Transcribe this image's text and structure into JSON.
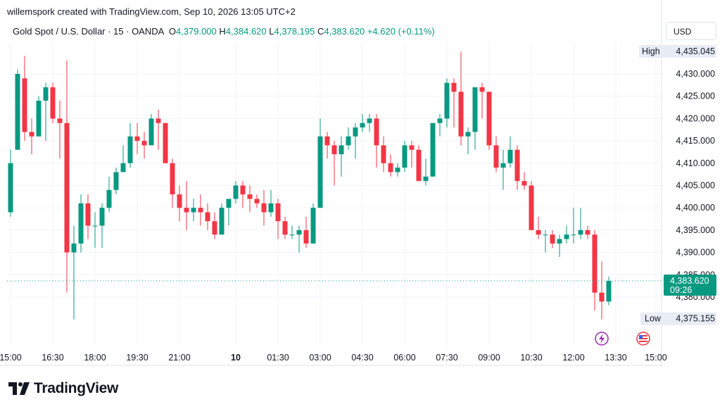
{
  "header": {
    "credit": "willemspork created with TradingView.com, Sep 10, 2026 13:05 UTC+2"
  },
  "legend": {
    "symbol": "Gold Spot / U.S. Dollar · 15 · OANDA",
    "o_label": "O",
    "o_value": "4,379.000",
    "h_label": "H",
    "h_value": "4,384.620",
    "l_label": "L",
    "l_value": "4,378.195",
    "c_label": "C",
    "c_value": "4,383.620",
    "change": "+4.620 (+0.11%)"
  },
  "currency": "USD",
  "footer": {
    "brand": "TradingView"
  },
  "colors": {
    "up": "#089981",
    "down": "#f23645",
    "grid": "#f0f3fa",
    "axis_text": "#131722",
    "badge_bg": "#e8ecf5"
  },
  "chart_data": {
    "type": "candlestick",
    "y_ticks": [
      "4,430.000",
      "4,425.000",
      "4,420.000",
      "4,415.000",
      "4,410.000",
      "4,405.000",
      "4,400.000",
      "4,395.000",
      "4,390.000",
      "4,385.000",
      "4,380.000"
    ],
    "y_tick_values": [
      4430,
      4425,
      4420,
      4415,
      4410,
      4405,
      4400,
      4395,
      4390,
      4385,
      4380
    ],
    "x_ticks": [
      "15:00",
      "16:30",
      "18:00",
      "19:30",
      "21:00",
      "10",
      "01:30",
      "03:00",
      "04:30",
      "06:00",
      "07:30",
      "09:00",
      "10:30",
      "12:00",
      "13:30",
      "15:00"
    ],
    "high_label": "High",
    "high_value": "4,435.045",
    "high_num": 4435.045,
    "low_label": "Low",
    "low_value": "4,375.155",
    "low_num": 4375.155,
    "last_price": "4,383.620",
    "last_price_num": 4383.62,
    "countdown": "09:26",
    "candles": [
      [
        4399,
        4410,
        4398,
        4413
      ],
      [
        4413,
        4430,
        4413,
        4431
      ],
      [
        4429,
        4417,
        4415,
        4434
      ],
      [
        4417,
        4416,
        4412,
        4420
      ],
      [
        4416,
        4424,
        4416,
        4425
      ],
      [
        4424,
        4427,
        4415,
        4428
      ],
      [
        4427,
        4420,
        4419,
        4428
      ],
      [
        4420,
        4419,
        4411,
        4424
      ],
      [
        4419,
        4390,
        4381,
        4433
      ],
      [
        4390,
        4392,
        4375,
        4396
      ],
      [
        4392,
        4401,
        4390,
        4403
      ],
      [
        4401,
        4396,
        4393,
        4403
      ],
      [
        4396,
        4396,
        4391,
        4399
      ],
      [
        4396,
        4400,
        4391,
        4401
      ],
      [
        4400,
        4404,
        4399,
        4407
      ],
      [
        4404,
        4408,
        4403,
        4409
      ],
      [
        4408,
        4410,
        4408,
        4414
      ],
      [
        4410,
        4416,
        4409,
        4419
      ],
      [
        4416,
        4415,
        4412,
        4419
      ],
      [
        4415,
        4414,
        4411,
        4417
      ],
      [
        4414,
        4420,
        4414,
        4421
      ],
      [
        4420,
        4419,
        4413,
        4422
      ],
      [
        4419,
        4410,
        4410,
        4419
      ],
      [
        4410,
        4403,
        4400,
        4411
      ],
      [
        4403,
        4400,
        4397,
        4405
      ],
      [
        4400,
        4399,
        4395,
        4406
      ],
      [
        4399,
        4400,
        4397,
        4402
      ],
      [
        4400,
        4399,
        4396,
        4403
      ],
      [
        4399,
        4397,
        4395,
        4401
      ],
      [
        4397,
        4394,
        4393,
        4399
      ],
      [
        4394,
        4400,
        4394,
        4401
      ],
      [
        4400,
        4402,
        4396,
        4402
      ],
      [
        4402,
        4405,
        4401,
        4406
      ],
      [
        4405,
        4403,
        4400,
        4406
      ],
      [
        4403,
        4402,
        4399,
        4405
      ],
      [
        4402,
        4401,
        4400,
        4403
      ],
      [
        4401,
        4399,
        4396,
        4404
      ],
      [
        4399,
        4401,
        4398,
        4404
      ],
      [
        4401,
        4397,
        4393,
        4402
      ],
      [
        4397,
        4394,
        4393,
        4398
      ],
      [
        4394,
        4394,
        4393,
        4396
      ],
      [
        4394,
        4395,
        4390,
        4396
      ],
      [
        4395,
        4392,
        4391,
        4398
      ],
      [
        4392,
        4400,
        4392,
        4401
      ],
      [
        4400,
        4416,
        4400,
        4420
      ],
      [
        4416,
        4414,
        4411,
        4417
      ],
      [
        4414,
        4412,
        4405,
        4415
      ],
      [
        4412,
        4414,
        4407,
        4416
      ],
      [
        4414,
        4416,
        4413,
        4418
      ],
      [
        4416,
        4418,
        4411,
        4419
      ],
      [
        4418,
        4419,
        4417,
        4421
      ],
      [
        4419,
        4420,
        4417,
        4421
      ],
      [
        4420,
        4414,
        4409,
        4421
      ],
      [
        4414,
        4410,
        4408,
        4416
      ],
      [
        4410,
        4408,
        4407,
        4412
      ],
      [
        4408,
        4409,
        4407,
        4410
      ],
      [
        4409,
        4414,
        4408,
        4415
      ],
      [
        4414,
        4413,
        4409,
        4415
      ],
      [
        4413,
        4406,
        4406,
        4414
      ],
      [
        4406,
        4407,
        4405,
        4411
      ],
      [
        4407,
        4419,
        4407,
        4419
      ],
      [
        4419,
        4420,
        4416,
        4421
      ],
      [
        4420,
        4428,
        4418,
        4429
      ],
      [
        4428,
        4426,
        4418,
        4429
      ],
      [
        4426,
        4416,
        4414,
        4435
      ],
      [
        4416,
        4417,
        4412,
        4418
      ],
      [
        4417,
        4427,
        4413,
        4427
      ],
      [
        4427,
        4426,
        4420,
        4428
      ],
      [
        4426,
        4414,
        4413,
        4426
      ],
      [
        4414,
        4409,
        4408,
        4416
      ],
      [
        4409,
        4410,
        4404,
        4413
      ],
      [
        4410,
        4413,
        4409,
        4416
      ],
      [
        4413,
        4406,
        4404,
        4414
      ],
      [
        4406,
        4405,
        4404,
        4408
      ],
      [
        4405,
        4395,
        4395,
        4406
      ],
      [
        4395,
        4394,
        4393,
        4398
      ],
      [
        4394,
        4394,
        4390,
        4395
      ],
      [
        4394,
        4392,
        4391,
        4395
      ],
      [
        4392,
        4393,
        4389,
        4394
      ],
      [
        4393,
        4394,
        4392,
        4396
      ],
      [
        4394,
        4394,
        4392,
        4400
      ],
      [
        4394,
        4395,
        4393,
        4400
      ],
      [
        4395,
        4394,
        4393,
        4396
      ],
      [
        4394,
        4381,
        4377,
        4395
      ],
      [
        4381,
        4379,
        4375,
        4388
      ],
      [
        4379,
        4383.62,
        4378.195,
        4384.62
      ]
    ]
  }
}
